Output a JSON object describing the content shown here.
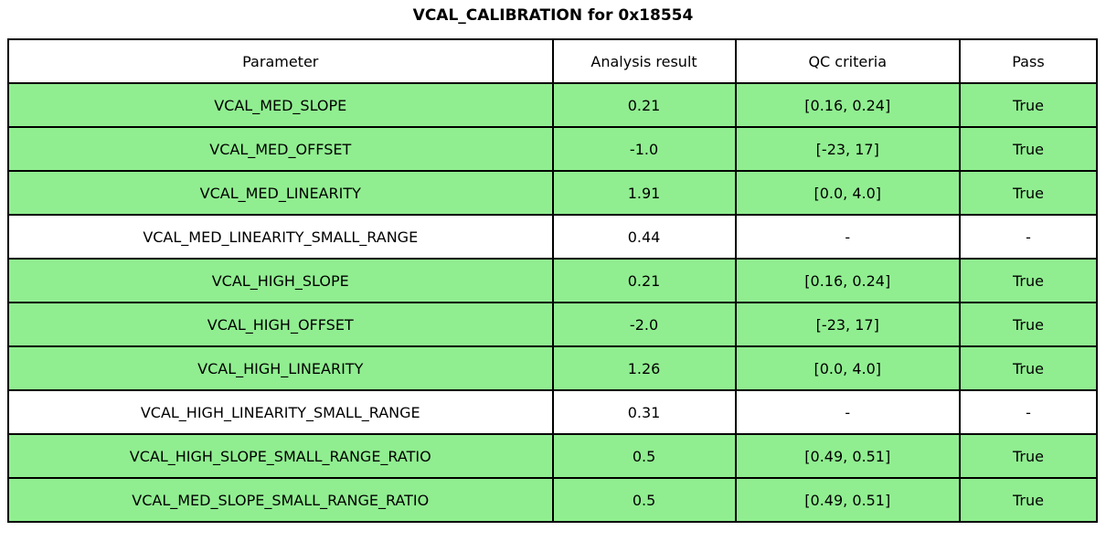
{
  "title": "VCAL_CALIBRATION for 0x18554",
  "colors": {
    "pass_row_green": "#90EE90",
    "plain_row_white": "#ffffff",
    "border": "#000000"
  },
  "chart_data": {
    "type": "table",
    "title": "VCAL_CALIBRATION for 0x18554",
    "columns": [
      "Parameter",
      "Analysis result",
      "QC criteria",
      "Pass"
    ],
    "rows": [
      {
        "cells": [
          "VCAL_MED_SLOPE",
          "0.21",
          "[0.16, 0.24]",
          "True"
        ],
        "highlight": true
      },
      {
        "cells": [
          "VCAL_MED_OFFSET",
          "-1.0",
          "[-23, 17]",
          "True"
        ],
        "highlight": true
      },
      {
        "cells": [
          "VCAL_MED_LINEARITY",
          "1.91",
          "[0.0, 4.0]",
          "True"
        ],
        "highlight": true
      },
      {
        "cells": [
          "VCAL_MED_LINEARITY_SMALL_RANGE",
          "0.44",
          "-",
          "-"
        ],
        "highlight": false
      },
      {
        "cells": [
          "VCAL_HIGH_SLOPE",
          "0.21",
          "[0.16, 0.24]",
          "True"
        ],
        "highlight": true
      },
      {
        "cells": [
          "VCAL_HIGH_OFFSET",
          "-2.0",
          "[-23, 17]",
          "True"
        ],
        "highlight": true
      },
      {
        "cells": [
          "VCAL_HIGH_LINEARITY",
          "1.26",
          "[0.0, 4.0]",
          "True"
        ],
        "highlight": true
      },
      {
        "cells": [
          "VCAL_HIGH_LINEARITY_SMALL_RANGE",
          "0.31",
          "-",
          "-"
        ],
        "highlight": false
      },
      {
        "cells": [
          "VCAL_HIGH_SLOPE_SMALL_RANGE_RATIO",
          "0.5",
          "[0.49, 0.51]",
          "True"
        ],
        "highlight": true
      },
      {
        "cells": [
          "VCAL_MED_SLOPE_SMALL_RANGE_RATIO",
          "0.5",
          "[0.49, 0.51]",
          "True"
        ],
        "highlight": true
      }
    ],
    "layout": {
      "column_widths_pct": [
        50.0,
        16.8,
        20.6,
        12.6
      ],
      "legend": "none",
      "grid": "full cell borders"
    }
  }
}
